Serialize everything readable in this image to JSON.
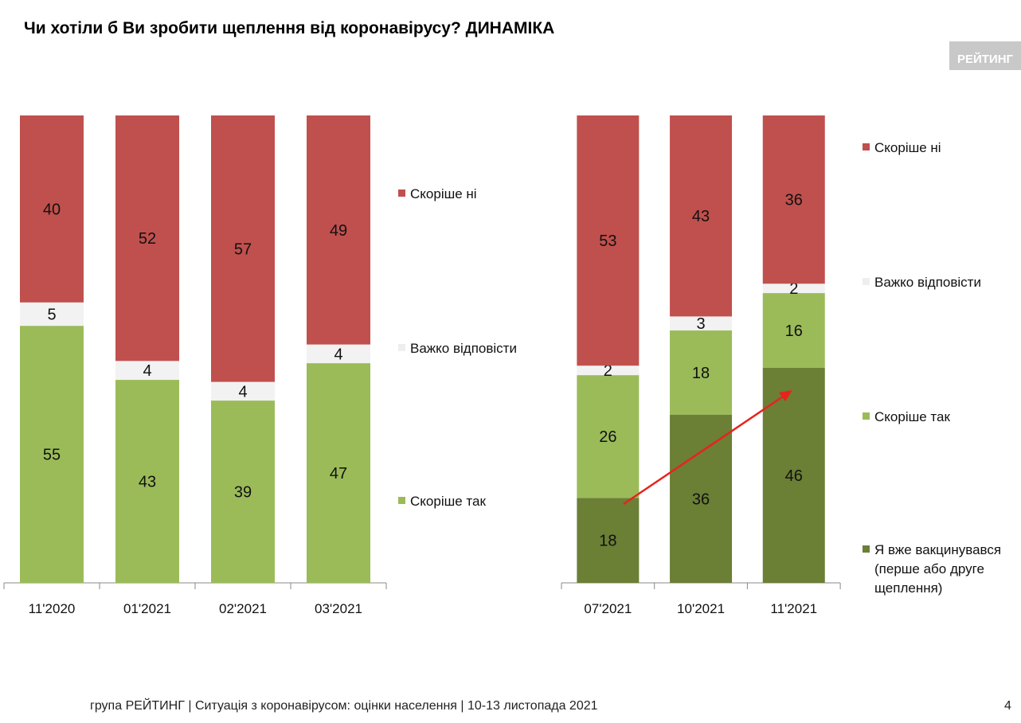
{
  "title": "Чи хотіли б Ви зробити щеплення від коронавірусу? ДИНАМІКА",
  "logo": "РЕЙТИНГ",
  "footer": "група РЕЙТИНГ | Ситуація з коронавірусом: оцінки населення | 10-13 листопада 2021",
  "page_number": "4",
  "colors": {
    "no": "#c0504d",
    "hard": "#f2f2f2",
    "yes": "#9bbb59",
    "vaccinated": "#6b7f35",
    "arrow": "#e8231c"
  },
  "chart_data": [
    {
      "type": "bar",
      "stacked": true,
      "categories": [
        "11'2020",
        "01'2021",
        "02'2021",
        "03'2021"
      ],
      "series": [
        {
          "name": "Скоріше так",
          "key": "yes",
          "values": [
            55,
            43,
            39,
            47
          ]
        },
        {
          "name": "Важко відповісти",
          "key": "hard",
          "values": [
            5,
            4,
            4,
            4
          ]
        },
        {
          "name": "Скоріше ні",
          "key": "no",
          "values": [
            40,
            52,
            57,
            49
          ]
        }
      ],
      "legend": "right"
    },
    {
      "type": "bar",
      "stacked": true,
      "categories": [
        "07'2021",
        "10'2021",
        "11'2021"
      ],
      "series": [
        {
          "name": "Я вже вакцинувався (перше або друге щеплення)",
          "lines": [
            "Я вже вакцинувався",
            "(перше або друге",
            "щеплення)"
          ],
          "key": "vaccinated",
          "values": [
            18,
            36,
            46
          ]
        },
        {
          "name": "Скоріше так",
          "key": "yes",
          "values": [
            26,
            18,
            16
          ]
        },
        {
          "name": "Важко відповісти",
          "key": "hard",
          "values": [
            2,
            3,
            2
          ]
        },
        {
          "name": "Скоріше ні",
          "key": "no",
          "values": [
            53,
            43,
            36
          ]
        }
      ],
      "legend": "right"
    }
  ]
}
